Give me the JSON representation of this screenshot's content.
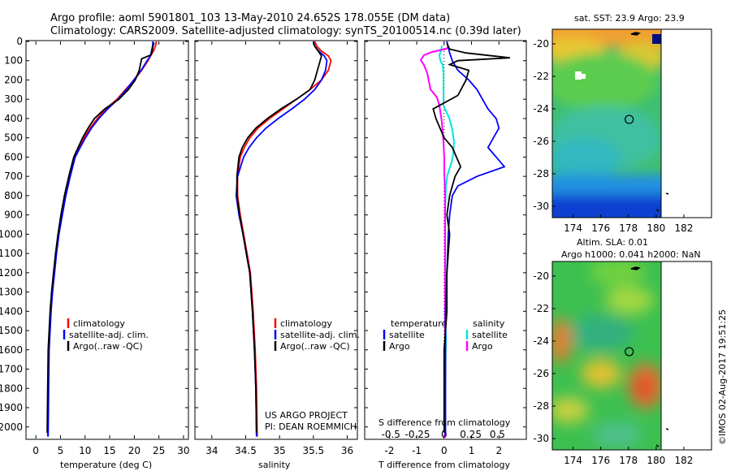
{
  "title_line1": "Argo profile: aoml 5901801_103 13-May-2010 24.652S 178.055E (DM data)",
  "title_line2": "Climatology: CARS2009. Satellite-adjusted climatology: synTS_20100514.nc (0.39d later)",
  "credit": "©IMOS 02-Aug-2017 19:51:25",
  "project_line1": "US ARGO PROJECT",
  "project_line2": "PI: DEAN ROEMMICH",
  "colors": {
    "climatology": "#ff0000",
    "satellite": "#0000ff",
    "argo": "#000000",
    "sat_salinity": "#00e5e5",
    "argo_salinity": "#ff00ff"
  },
  "chart_data": [
    {
      "type": "line",
      "xlabel": "temperature (deg C)",
      "ylabel": "",
      "xlim": [
        -2,
        31
      ],
      "ylim": [
        2060,
        0
      ],
      "y_inverted": true,
      "xticks": [
        0,
        5,
        10,
        15,
        20,
        25,
        30
      ],
      "yticks": [
        0,
        100,
        200,
        300,
        400,
        500,
        600,
        700,
        800,
        900,
        1000,
        1100,
        1200,
        1300,
        1400,
        1500,
        1600,
        1700,
        1800,
        1900,
        2000
      ],
      "legend": {
        "placement": "bottom-center",
        "entries": [
          "climatology",
          "satellite-adj. clim.",
          "Argo(..raw -QC)"
        ]
      },
      "series": [
        {
          "name": "climatology",
          "color": "#ff0000",
          "x": [
            24.5,
            24.3,
            23.9,
            23.3,
            22.8,
            21.5,
            20.0,
            18.2,
            16.5,
            14.2,
            12.5,
            11.0,
            9.8,
            8.8,
            7.8,
            6.8,
            5.9,
            5.2,
            4.6,
            4.1,
            3.7,
            3.3,
            3.0,
            2.8,
            2.6,
            2.5,
            2.4
          ],
          "y": [
            0,
            25,
            50,
            75,
            100,
            150,
            200,
            250,
            300,
            350,
            400,
            450,
            500,
            550,
            600,
            700,
            800,
            900,
            1000,
            1100,
            1200,
            1300,
            1400,
            1500,
            1600,
            1800,
            2050
          ]
        },
        {
          "name": "satellite-adj. clim.",
          "color": "#0000ff",
          "x": [
            23.8,
            23.7,
            23.5,
            23.3,
            22.6,
            21.4,
            19.9,
            18.4,
            16.7,
            14.6,
            12.8,
            11.3,
            10.1,
            9.0,
            8.0,
            7.0,
            6.1,
            5.4,
            4.7,
            4.2,
            3.8,
            3.4,
            3.1,
            2.9,
            2.7,
            2.6,
            2.5
          ],
          "y": [
            0,
            25,
            50,
            75,
            100,
            150,
            200,
            250,
            300,
            350,
            400,
            450,
            500,
            550,
            600,
            700,
            800,
            900,
            1000,
            1100,
            1200,
            1300,
            1400,
            1500,
            1600,
            1800,
            2050
          ]
        },
        {
          "name": "Argo(..raw -QC)",
          "color": "#000000",
          "x": [
            24.0,
            23.8,
            23.6,
            23.4,
            21.5,
            21.0,
            20.2,
            18.8,
            16.9,
            14.0,
            11.9,
            10.6,
            9.5,
            8.6,
            7.7,
            6.7,
            5.8,
            5.1,
            4.5,
            4.0,
            3.6,
            3.2,
            2.9,
            2.7,
            2.5,
            2.4,
            2.3
          ],
          "y": [
            5,
            25,
            50,
            70,
            90,
            150,
            200,
            250,
            300,
            350,
            400,
            450,
            500,
            550,
            600,
            700,
            800,
            900,
            1000,
            1100,
            1200,
            1300,
            1400,
            1500,
            1600,
            1800,
            2030
          ]
        }
      ]
    },
    {
      "type": "line",
      "xlabel": "salinity",
      "ylabel": "",
      "xlim": [
        33.75,
        36.15
      ],
      "ylim": [
        2060,
        0
      ],
      "y_inverted": true,
      "xticks": [
        34,
        34.5,
        35,
        35.5,
        36
      ],
      "legend": {
        "placement": "bottom-center",
        "entries": [
          "climatology",
          "satellite-adj. clim.",
          "Argo(..raw -QC)"
        ]
      },
      "series": [
        {
          "name": "climatology",
          "color": "#ff0000",
          "x": [
            35.52,
            35.55,
            35.62,
            35.72,
            35.76,
            35.72,
            35.62,
            35.45,
            35.25,
            35.05,
            34.85,
            34.68,
            34.56,
            34.48,
            34.42,
            34.38,
            34.38,
            34.42,
            34.47,
            34.52,
            34.57,
            34.61,
            34.64,
            34.66,
            34.67
          ],
          "y": [
            0,
            25,
            50,
            75,
            100,
            150,
            200,
            250,
            300,
            350,
            400,
            450,
            500,
            550,
            600,
            700,
            800,
            900,
            1000,
            1100,
            1200,
            1400,
            1600,
            1800,
            2050
          ]
        },
        {
          "name": "satellite-adj. clim.",
          "color": "#0000ff",
          "x": [
            35.5,
            35.52,
            35.58,
            35.66,
            35.7,
            35.68,
            35.62,
            35.52,
            35.37,
            35.18,
            34.98,
            34.8,
            34.66,
            34.55,
            34.47,
            34.38,
            34.36,
            34.4,
            34.46,
            34.51,
            34.56,
            34.6,
            34.63,
            34.65,
            34.66
          ],
          "y": [
            0,
            25,
            50,
            75,
            100,
            150,
            200,
            250,
            300,
            350,
            400,
            450,
            500,
            550,
            600,
            700,
            800,
            900,
            1000,
            1100,
            1200,
            1400,
            1600,
            1800,
            2050
          ]
        },
        {
          "name": "Argo(..raw -QC)",
          "color": "#000000",
          "x": [
            35.5,
            35.52,
            35.57,
            35.62,
            35.6,
            35.56,
            35.52,
            35.45,
            35.25,
            35.02,
            34.82,
            34.65,
            34.53,
            34.45,
            34.4,
            34.37,
            34.37,
            34.41,
            34.46,
            34.51,
            34.56,
            34.6,
            34.63,
            34.65,
            34.66
          ],
          "y": [
            5,
            25,
            50,
            75,
            100,
            150,
            200,
            250,
            300,
            350,
            400,
            450,
            500,
            550,
            600,
            700,
            800,
            900,
            1000,
            1100,
            1200,
            1400,
            1600,
            1800,
            2030
          ]
        }
      ]
    },
    {
      "type": "line",
      "xlabel": "T difference from climatology",
      "xlabel_top": "S difference from climatology",
      "ylabel": "",
      "xlim": [
        -2.9,
        3.0
      ],
      "ylim": [
        2060,
        0
      ],
      "y_inverted": true,
      "xticks": [
        -2,
        -1,
        0,
        1,
        2
      ],
      "s_ticks": [
        -0.5,
        -0.25,
        0,
        0.25,
        0.5
      ],
      "legend_temperature": {
        "title": "temperature",
        "entries": [
          "satellite",
          "Argo"
        ]
      },
      "legend_salinity": {
        "title": "salinity",
        "entries": [
          "satellite",
          "Argo"
        ]
      },
      "series": [
        {
          "name": "T satellite",
          "color": "#0000ff",
          "x": [
            0.1,
            0.15,
            0.2,
            0.3,
            0.5,
            0.9,
            1.2,
            1.4,
            1.6,
            1.9,
            2.0,
            1.8,
            1.6,
            1.9,
            2.2,
            1.2,
            0.5,
            0.3,
            0.2,
            0.15,
            0.1,
            0.05,
            0.05,
            0.05,
            0.05
          ],
          "y": [
            0,
            30,
            60,
            100,
            150,
            200,
            250,
            300,
            350,
            400,
            450,
            500,
            550,
            600,
            650,
            700,
            750,
            800,
            900,
            1000,
            1200,
            1400,
            1600,
            1800,
            2050
          ]
        },
        {
          "name": "T Argo",
          "color": "#000000",
          "x": [
            0.1,
            0.2,
            0.8,
            2.4,
            0.5,
            0.2,
            0.9,
            0.8,
            0.5,
            -0.4,
            -0.3,
            0.0,
            0.3,
            0.6,
            0.4,
            0.3,
            0.2,
            0.1,
            0.2,
            0.1,
            0.1,
            0.0,
            0.0,
            0.0
          ],
          "y": [
            10,
            40,
            60,
            85,
            100,
            120,
            150,
            200,
            280,
            350,
            400,
            500,
            550,
            650,
            700,
            750,
            800,
            900,
            1000,
            1200,
            1400,
            1600,
            1800,
            2030
          ]
        }
      ]
    },
    {
      "type": "heatmap",
      "title": "sat. SST: 23.9 Argo: 23.9",
      "xticks": [
        174,
        176,
        178,
        180,
        182
      ],
      "yticks": [
        -20,
        -22,
        -24,
        -26,
        -28,
        -30
      ],
      "xlim": [
        172.5,
        184
      ],
      "ylim": [
        -30.7,
        -19.1
      ],
      "marker": {
        "lon": 178.055,
        "lat": -24.652
      }
    },
    {
      "type": "heatmap",
      "title_line1": "Altim. SLA: 0.01",
      "title_line2": "Argo h1000: 0.041 h2000: NaN",
      "xticks": [
        174,
        176,
        178,
        180,
        182
      ],
      "yticks": [
        -20,
        -22,
        -24,
        -26,
        -28,
        -30
      ],
      "xlim": [
        172.5,
        184
      ],
      "ylim": [
        -30.7,
        -19.1
      ],
      "marker": {
        "lon": 178.055,
        "lat": -24.652
      }
    }
  ]
}
